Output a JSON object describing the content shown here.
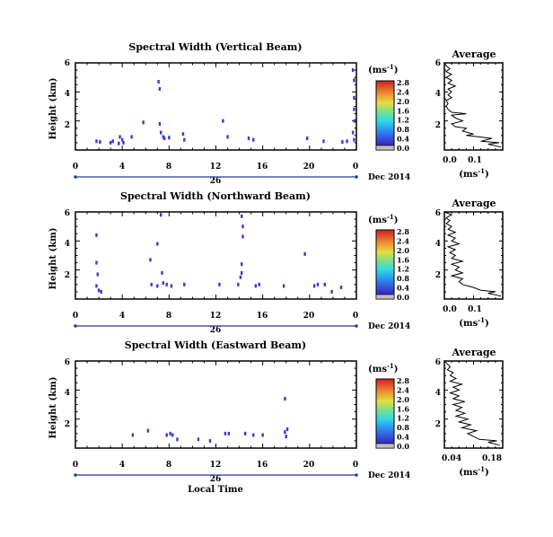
{
  "chart_data": [
    {
      "type": "heatmap",
      "title": "Spectral Width (Vertical Beam)",
      "ylabel": "Height (km)",
      "yticks": [
        "2",
        "4",
        "6"
      ],
      "ylim": [
        0,
        6
      ],
      "xticks": [
        "0",
        "4",
        "8",
        "12",
        "16",
        "20",
        "0"
      ],
      "xlim": [
        0,
        24
      ],
      "date_day": "26",
      "date_label": "Dec 2014",
      "colorbar": {
        "unit_label": "(ms",
        "unit_exp": "-1",
        "unit_close": ")",
        "ticks": [
          "0.0",
          "0.4",
          "0.8",
          "1.2",
          "1.6",
          "2.0",
          "2.4",
          "2.8"
        ]
      },
      "points": [
        [
          1.8,
          0.6
        ],
        [
          2.1,
          0.55
        ],
        [
          3.2,
          0.6
        ],
        [
          3.0,
          0.5
        ],
        [
          3.8,
          0.9
        ],
        [
          4.0,
          0.7
        ],
        [
          4.1,
          0.5
        ],
        [
          3.7,
          0.45
        ],
        [
          4.8,
          0.9
        ],
        [
          5.8,
          1.9
        ],
        [
          7.1,
          4.7
        ],
        [
          7.2,
          4.2
        ],
        [
          7.2,
          1.8
        ],
        [
          7.3,
          1.2
        ],
        [
          7.5,
          0.9
        ],
        [
          7.6,
          0.8
        ],
        [
          8.0,
          0.85
        ],
        [
          9.2,
          1.1
        ],
        [
          9.3,
          0.7
        ],
        [
          12.6,
          2.0
        ],
        [
          13.0,
          0.9
        ],
        [
          14.8,
          0.8
        ],
        [
          15.2,
          0.7
        ],
        [
          19.8,
          0.8
        ],
        [
          21.2,
          0.6
        ],
        [
          22.8,
          0.55
        ],
        [
          23.2,
          0.6
        ],
        [
          23.7,
          5.5
        ],
        [
          23.8,
          4.8
        ],
        [
          23.8,
          3.6
        ],
        [
          23.8,
          2.8
        ],
        [
          23.85,
          2.0
        ],
        [
          23.7,
          1.2
        ],
        [
          23.8,
          0.7
        ]
      ],
      "average_panel": {
        "title": "Average",
        "xlabel": "(ms",
        "xlabel_exp": "-1",
        "xlabel_close": ")",
        "xticks": [
          "0.0",
          "0.1"
        ],
        "xlim": [
          0,
          0.16
        ],
        "yticks": [
          "2",
          "4",
          "6"
        ],
        "ylim": [
          0,
          6
        ],
        "profile": [
          [
            0.155,
            0.2
          ],
          [
            0.12,
            0.4
          ],
          [
            0.15,
            0.5
          ],
          [
            0.1,
            0.6
          ],
          [
            0.13,
            0.8
          ],
          [
            0.06,
            1.0
          ],
          [
            0.08,
            1.1
          ],
          [
            0.05,
            1.3
          ],
          [
            0.06,
            1.5
          ],
          [
            0.03,
            1.6
          ],
          [
            0.02,
            1.8
          ],
          [
            0.05,
            2.0
          ],
          [
            0.03,
            2.2
          ],
          [
            0.02,
            2.4
          ],
          [
            0.06,
            2.5
          ],
          [
            0.02,
            2.6
          ],
          [
            0.01,
            2.8
          ],
          [
            0.005,
            3.0
          ],
          [
            0.01,
            3.2
          ],
          [
            0.005,
            3.4
          ],
          [
            0.02,
            3.6
          ],
          [
            0.01,
            3.8
          ],
          [
            0.02,
            4.0
          ],
          [
            0.01,
            4.2
          ],
          [
            0.03,
            4.4
          ],
          [
            0.01,
            4.6
          ],
          [
            0.02,
            4.8
          ],
          [
            0.005,
            5.0
          ],
          [
            0.02,
            5.2
          ],
          [
            0.005,
            5.4
          ],
          [
            0.015,
            5.6
          ],
          [
            0.005,
            5.8
          ],
          [
            0.0,
            6.0
          ]
        ]
      }
    },
    {
      "type": "heatmap",
      "title": "Spectral Width (Northward Beam)",
      "ylabel": "Height (km)",
      "yticks": [
        "2",
        "4",
        "6"
      ],
      "ylim": [
        0,
        6
      ],
      "xticks": [
        "0",
        "4",
        "8",
        "12",
        "16",
        "20",
        "0"
      ],
      "xlim": [
        0,
        24
      ],
      "date_day": "26",
      "date_label": "Dec 2014",
      "colorbar": {
        "unit_label": "(ms",
        "unit_exp": "-1",
        "unit_close": ")",
        "ticks": [
          "0.0",
          "0.4",
          "0.8",
          "1.2",
          "1.6",
          "2.0",
          "2.4",
          "2.8"
        ]
      },
      "points": [
        [
          1.8,
          4.4
        ],
        [
          1.8,
          2.5
        ],
        [
          1.9,
          1.7
        ],
        [
          1.8,
          0.9
        ],
        [
          2.0,
          0.6
        ],
        [
          2.2,
          0.5
        ],
        [
          6.4,
          2.7
        ],
        [
          6.5,
          1.0
        ],
        [
          7.0,
          0.9
        ],
        [
          7.3,
          5.8
        ],
        [
          7.0,
          3.8
        ],
        [
          7.4,
          1.8
        ],
        [
          7.5,
          1.1
        ],
        [
          7.8,
          1.0
        ],
        [
          8.2,
          0.9
        ],
        [
          9.3,
          1.0
        ],
        [
          12.3,
          1.0
        ],
        [
          13.9,
          1.0
        ],
        [
          14.1,
          1.5
        ],
        [
          14.2,
          5.7
        ],
        [
          14.3,
          5.0
        ],
        [
          14.3,
          4.3
        ],
        [
          14.2,
          2.4
        ],
        [
          14.2,
          1.8
        ],
        [
          15.4,
          0.9
        ],
        [
          15.7,
          1.0
        ],
        [
          17.8,
          0.9
        ],
        [
          19.6,
          3.1
        ],
        [
          20.4,
          0.9
        ],
        [
          20.7,
          1.0
        ],
        [
          21.3,
          1.0
        ],
        [
          21.9,
          0.5
        ],
        [
          22.7,
          0.8
        ]
      ],
      "average_panel": {
        "title": "Average",
        "xlabel": "(ms",
        "xlabel_exp": "-1",
        "xlabel_close": ")",
        "xticks": [
          "0.0",
          "0.1"
        ],
        "xlim": [
          0,
          0.16
        ],
        "yticks": [
          "2",
          "4",
          "6"
        ],
        "ylim": [
          0,
          6
        ],
        "profile": [
          [
            0.155,
            0.2
          ],
          [
            0.12,
            0.4
          ],
          [
            0.14,
            0.5
          ],
          [
            0.1,
            0.6
          ],
          [
            0.08,
            0.8
          ],
          [
            0.05,
            1.0
          ],
          [
            0.04,
            1.2
          ],
          [
            0.05,
            1.4
          ],
          [
            0.02,
            1.6
          ],
          [
            0.05,
            1.8
          ],
          [
            0.03,
            2.0
          ],
          [
            0.04,
            2.2
          ],
          [
            0.02,
            2.4
          ],
          [
            0.05,
            2.6
          ],
          [
            0.02,
            2.8
          ],
          [
            0.03,
            3.0
          ],
          [
            0.015,
            3.2
          ],
          [
            0.03,
            3.4
          ],
          [
            0.01,
            3.6
          ],
          [
            0.04,
            3.8
          ],
          [
            0.02,
            4.0
          ],
          [
            0.03,
            4.2
          ],
          [
            0.01,
            4.4
          ],
          [
            0.03,
            4.6
          ],
          [
            0.01,
            4.8
          ],
          [
            0.02,
            5.0
          ],
          [
            0.005,
            5.2
          ],
          [
            0.015,
            5.4
          ],
          [
            0.005,
            5.6
          ],
          [
            0.02,
            5.8
          ],
          [
            0.0,
            6.0
          ]
        ]
      }
    },
    {
      "type": "heatmap",
      "title": "Spectral Width (Eastward Beam)",
      "ylabel": "Height (km)",
      "yticks": [
        "2",
        "4",
        "6"
      ],
      "ylim": [
        0,
        6
      ],
      "xticks": [
        "0",
        "4",
        "8",
        "12",
        "16",
        "20",
        "0"
      ],
      "xlim": [
        0,
        24
      ],
      "date_day": "26",
      "date_label": "Dec 2014",
      "xlabel": "Local Time",
      "colorbar": {
        "unit_label": "(ms",
        "unit_exp": "-1",
        "unit_close": ")",
        "ticks": [
          "0.0",
          "0.4",
          "0.8",
          "1.2",
          "1.6",
          "2.0",
          "2.4",
          "2.8"
        ]
      },
      "points": [
        [
          4.9,
          0.9
        ],
        [
          6.2,
          1.2
        ],
        [
          7.8,
          0.9
        ],
        [
          8.1,
          1.0
        ],
        [
          8.3,
          0.9
        ],
        [
          8.7,
          0.6
        ],
        [
          10.5,
          0.6
        ],
        [
          11.5,
          0.5
        ],
        [
          12.8,
          1.0
        ],
        [
          13.1,
          1.0
        ],
        [
          14.5,
          1.0
        ],
        [
          15.2,
          0.9
        ],
        [
          16.0,
          0.9
        ],
        [
          17.9,
          3.4
        ],
        [
          17.9,
          1.1
        ],
        [
          18.0,
          0.8
        ],
        [
          18.1,
          1.3
        ]
      ],
      "average_panel": {
        "title": "Average",
        "xlabel": "(ms",
        "xlabel_exp": "-1",
        "xlabel_close": ")",
        "xticks": [
          "0.04",
          "0.18"
        ],
        "xlim": [
          0.0,
          0.2
        ],
        "yticks": [
          "2",
          "4",
          "6"
        ],
        "ylim": [
          0,
          6
        ],
        "profile": [
          [
            0.19,
            0.2
          ],
          [
            0.15,
            0.4
          ],
          [
            0.18,
            0.5
          ],
          [
            0.12,
            0.6
          ],
          [
            0.1,
            0.8
          ],
          [
            0.08,
            1.0
          ],
          [
            0.11,
            1.2
          ],
          [
            0.06,
            1.4
          ],
          [
            0.09,
            1.6
          ],
          [
            0.05,
            1.8
          ],
          [
            0.08,
            2.0
          ],
          [
            0.04,
            2.2
          ],
          [
            0.07,
            2.4
          ],
          [
            0.04,
            2.6
          ],
          [
            0.06,
            2.8
          ],
          [
            0.03,
            3.0
          ],
          [
            0.07,
            3.2
          ],
          [
            0.03,
            3.4
          ],
          [
            0.05,
            3.6
          ],
          [
            0.02,
            3.8
          ],
          [
            0.05,
            4.0
          ],
          [
            0.03,
            4.2
          ],
          [
            0.06,
            4.4
          ],
          [
            0.02,
            4.6
          ],
          [
            0.04,
            4.8
          ],
          [
            0.02,
            5.0
          ],
          [
            0.03,
            5.2
          ],
          [
            0.01,
            5.4
          ],
          [
            0.02,
            5.6
          ],
          [
            0.01,
            5.8
          ],
          [
            0.0,
            6.0
          ]
        ]
      }
    }
  ]
}
